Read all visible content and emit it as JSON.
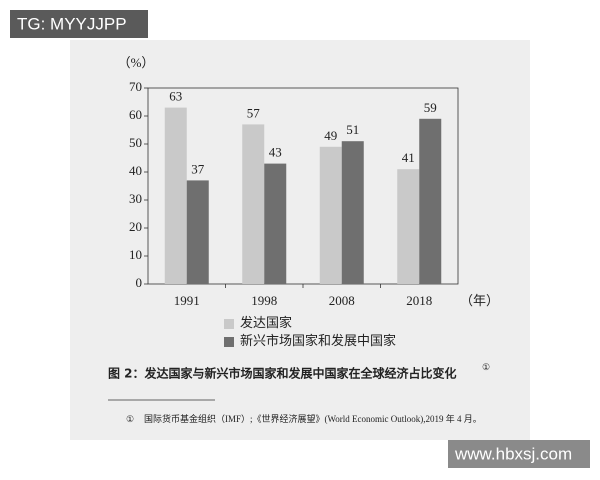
{
  "watermark_top": "TG: MYYJJPP",
  "watermark_bottom": "www.hbxsj.com",
  "chart_data": {
    "type": "bar",
    "y_unit_label": "（%）",
    "x_unit_label": "（年）",
    "categories": [
      "1991",
      "1998",
      "2008",
      "2018"
    ],
    "series": [
      {
        "name": "发达国家",
        "color": "#c9c9c9",
        "values": [
          63,
          57,
          49,
          41
        ]
      },
      {
        "name": "新兴市场国家和发展中国家",
        "color": "#6f6f6f",
        "values": [
          37,
          43,
          51,
          59
        ]
      }
    ],
    "ylim": [
      0,
      70
    ],
    "yticks": [
      0,
      10,
      20,
      30,
      40,
      50,
      60,
      70
    ]
  },
  "caption": {
    "text": "图 2：发达国家与新兴市场国家和发展中国家在全球经济占比变化",
    "marker": "①"
  },
  "footnote": {
    "marker": "①",
    "text": "国际货币基金组织（IMF）;《世界经济展望》(World Economic Outlook),2019 年 4 月。"
  }
}
